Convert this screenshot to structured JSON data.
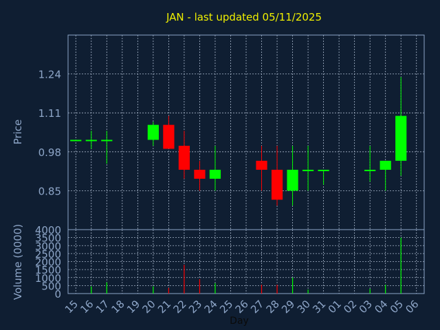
{
  "title": "JAN - last updated 05/11/2025",
  "chart_data": [
    {
      "type": "candlestick",
      "ylabel": "Price",
      "ylim": [
        0.72,
        1.37
      ],
      "yticks": [
        "1.24",
        "1.11",
        "0.98",
        "0.85"
      ],
      "grid": true,
      "up_color": "#00ff00",
      "down_color": "#ff0000",
      "candles": [
        {
          "day": "15",
          "open": 1.02,
          "high": 1.02,
          "low": 1.02,
          "close": 1.02
        },
        {
          "day": "16",
          "open": 1.02,
          "high": 1.05,
          "low": 0.99,
          "close": 1.02
        },
        {
          "day": "17",
          "open": 1.02,
          "high": 1.05,
          "low": 0.94,
          "close": 1.02
        },
        {
          "day": "20",
          "open": 1.02,
          "high": 1.08,
          "low": 1.0,
          "close": 1.07
        },
        {
          "day": "21",
          "open": 1.07,
          "high": 1.1,
          "low": 0.99,
          "close": 0.99
        },
        {
          "day": "22",
          "open": 1.0,
          "high": 1.05,
          "low": 0.89,
          "close": 0.92
        },
        {
          "day": "23",
          "open": 0.92,
          "high": 0.95,
          "low": 0.85,
          "close": 0.89
        },
        {
          "day": "24",
          "open": 0.89,
          "high": 1.0,
          "low": 0.85,
          "close": 0.92
        },
        {
          "day": "27",
          "open": 0.95,
          "high": 1.0,
          "low": 0.85,
          "close": 0.92
        },
        {
          "day": "28",
          "open": 0.92,
          "high": 1.0,
          "low": 0.8,
          "close": 0.82
        },
        {
          "day": "29",
          "open": 0.85,
          "high": 1.0,
          "low": 0.8,
          "close": 0.92
        },
        {
          "day": "30",
          "open": 0.92,
          "high": 1.0,
          "low": 0.85,
          "close": 0.92
        },
        {
          "day": "31",
          "open": 0.92,
          "high": 0.92,
          "low": 0.87,
          "close": 0.92
        },
        {
          "day": "03",
          "open": 0.92,
          "high": 1.0,
          "low": 0.88,
          "close": 0.92
        },
        {
          "day": "04",
          "open": 0.92,
          "high": 0.95,
          "low": 0.85,
          "close": 0.95
        },
        {
          "day": "05",
          "open": 0.95,
          "high": 1.23,
          "low": 0.9,
          "close": 1.1
        }
      ]
    },
    {
      "type": "bar",
      "ylabel": "Volume (0000)",
      "xlabel": "Day",
      "ylim": [
        0,
        4000
      ],
      "yticks": [
        "4000",
        "3500",
        "3000",
        "2500",
        "2000",
        "1500",
        "1000",
        "500",
        "0"
      ],
      "x_ticks": [
        "15",
        "16",
        "17",
        "18",
        "19",
        "20",
        "21",
        "22",
        "23",
        "24",
        "25",
        "26",
        "27",
        "28",
        "29",
        "30",
        "31",
        "01",
        "02",
        "03",
        "04",
        "05",
        "06"
      ],
      "bars": [
        {
          "day": "16",
          "value": 450,
          "color": "#00ff00"
        },
        {
          "day": "17",
          "value": 700,
          "color": "#00ff00"
        },
        {
          "day": "20",
          "value": 450,
          "color": "#00ff00"
        },
        {
          "day": "21",
          "value": 350,
          "color": "#ff0000"
        },
        {
          "day": "22",
          "value": 1800,
          "color": "#ff0000"
        },
        {
          "day": "23",
          "value": 900,
          "color": "#ff0000"
        },
        {
          "day": "24",
          "value": 650,
          "color": "#00ff00"
        },
        {
          "day": "27",
          "value": 550,
          "color": "#ff0000"
        },
        {
          "day": "28",
          "value": 550,
          "color": "#ff0000"
        },
        {
          "day": "29",
          "value": 1000,
          "color": "#00ff00"
        },
        {
          "day": "30",
          "value": 250,
          "color": "#00ff00"
        },
        {
          "day": "03",
          "value": 300,
          "color": "#00ff00"
        },
        {
          "day": "04",
          "value": 550,
          "color": "#00ff00"
        },
        {
          "day": "05",
          "value": 3500,
          "color": "#00ff00"
        }
      ]
    }
  ]
}
